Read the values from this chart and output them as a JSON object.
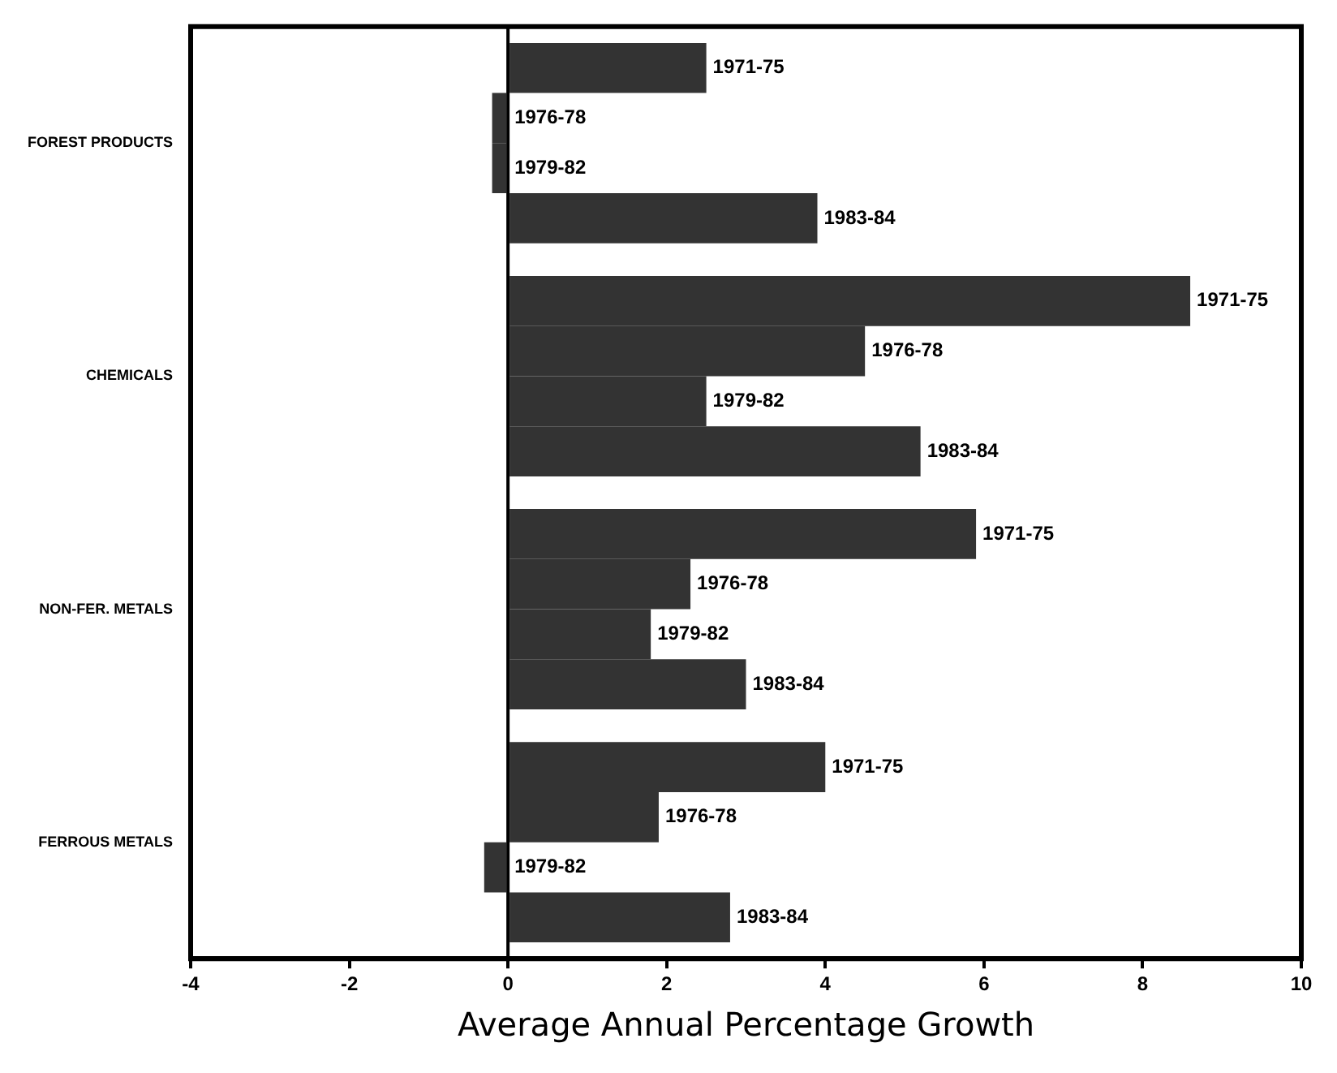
{
  "chart_data": {
    "type": "bar",
    "orientation": "horizontal",
    "xlabel": "Average Annual Percentage Growth",
    "categories": [
      "FOREST PRODUCTS",
      "CHEMICALS",
      "NON-FER. METALS",
      "FERROUS METALS"
    ],
    "series": [
      {
        "name": "1971-75",
        "color": "#333333",
        "values": [
          2.5,
          8.6,
          5.9,
          4.0
        ]
      },
      {
        "name": "1976-78",
        "color": "#333333",
        "values": [
          -0.2,
          4.5,
          2.3,
          1.9
        ]
      },
      {
        "name": "1979-82",
        "color": "#333333",
        "values": [
          -0.2,
          2.5,
          1.8,
          -0.3
        ]
      },
      {
        "name": "1983-84",
        "color": "#333333",
        "values": [
          3.9,
          5.2,
          3.0,
          2.8
        ]
      }
    ],
    "xlim": [
      -4,
      10
    ],
    "xticks": [
      -4,
      -2,
      0,
      2,
      4,
      6,
      8,
      10
    ],
    "ref_lines": [
      {
        "axis": "x",
        "value": 0,
        "color": "#000000"
      }
    ],
    "grid": false,
    "legend": false
  }
}
